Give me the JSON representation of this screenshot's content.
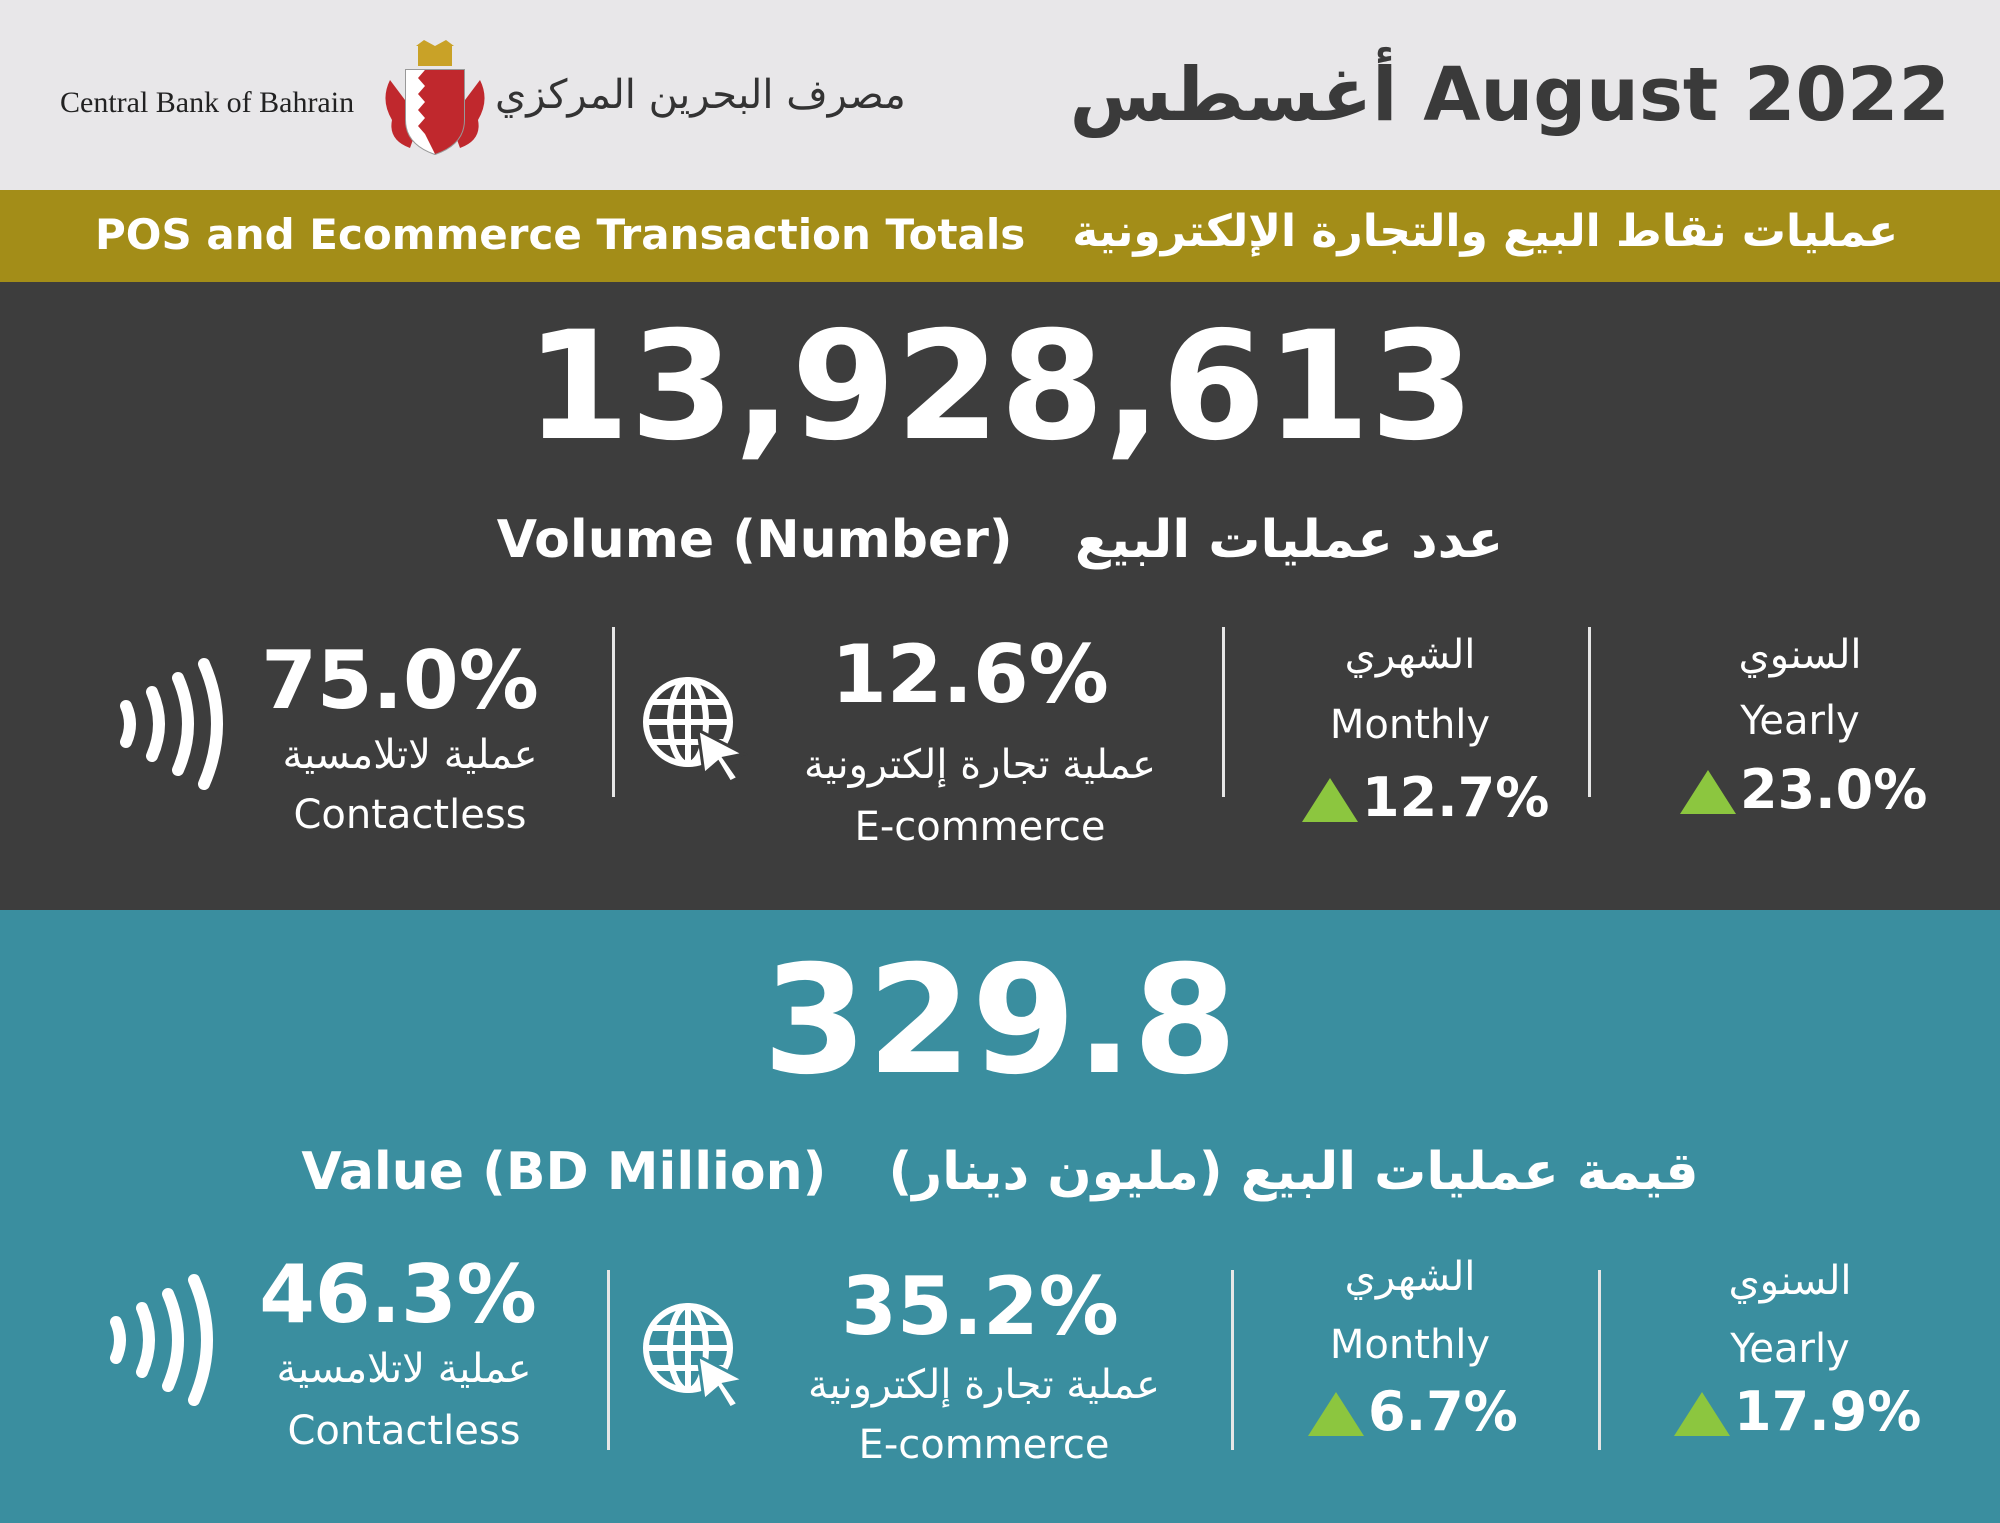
{
  "header": {
    "bank_name_en": "Central Bank of Bahrain",
    "bank_name_ar": "مصرف البحرين المركزي",
    "title": "أغسطس August 2022"
  },
  "band": {
    "title_en": "POS and Ecommerce Transaction Totals",
    "title_ar": "عمليات نقاط البيع والتجارة الإلكترونية"
  },
  "volume": {
    "total": "13,928,613",
    "label_en": "Volume (Number)",
    "label_ar": "عدد عمليات البيع",
    "contactless": {
      "pct": "75.0%",
      "label_ar": "عملية لاتلامسية",
      "label_en": "Contactless"
    },
    "ecommerce": {
      "pct": "12.6%",
      "label_ar": "عملية تجارة إلكترونية",
      "label_en": "E-commerce"
    },
    "monthly": {
      "label_ar": "الشهري",
      "label_en": "Monthly",
      "change": "12.7%"
    },
    "yearly": {
      "label_ar": "السنوي",
      "label_en": "Yearly",
      "change": "23.0%"
    }
  },
  "value": {
    "total": "329.8",
    "label_en": "Value (BD Million)",
    "label_ar": "قيمة عمليات البيع (مليون دينار)",
    "contactless": {
      "pct": "46.3%",
      "label_ar": "عملية لاتلامسية",
      "label_en": "Contactless"
    },
    "ecommerce": {
      "pct": "35.2%",
      "label_ar": "عملية تجارة إلكترونية",
      "label_en": "E-commerce"
    },
    "monthly": {
      "label_ar": "الشهري",
      "label_en": "Monthly",
      "change": "6.7%"
    },
    "yearly": {
      "label_ar": "السنوي",
      "label_en": "Yearly",
      "change": "17.9%"
    }
  },
  "colors": {
    "header_bg": "#e8e7e9",
    "band_bg": "#a38d18",
    "volume_bg": "#3d3d3d",
    "value_bg": "#3a8e9f",
    "up_arrow": "#8cc63f"
  },
  "icons": {
    "emblem": "bahrain-emblem-icon",
    "contactless": "contactless-icon",
    "ecommerce": "globe-cursor-icon",
    "increase": "up-triangle-icon"
  }
}
